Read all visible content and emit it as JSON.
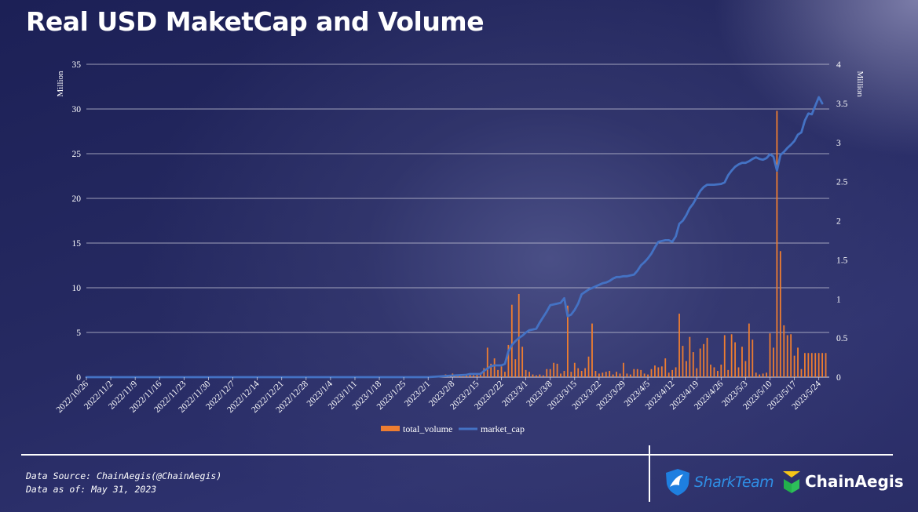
{
  "title": "Real USD MaketCap and Volume",
  "footer": {
    "source_line": "Data Source: ChainAegis(@ChainAegis)",
    "date_line": "Data as of: May 31, 2023",
    "logos": [
      {
        "name": "SharkTeam",
        "color": "#2f8fe6"
      },
      {
        "name": "ChainAegis",
        "color": "#ffffff"
      }
    ]
  },
  "chart_data": {
    "type": "bar+line",
    "x_start": "2022/10/26",
    "x_end": "2023/5/27",
    "x_tick_labels": [
      "2022/10/26",
      "2022/11/2",
      "2022/11/9",
      "2022/11/16",
      "2022/11/23",
      "2022/11/30",
      "2022/12/7",
      "2022/12/14",
      "2022/12/21",
      "2022/12/28",
      "2023/1/4",
      "2023/1/11",
      "2023/1/18",
      "2023/1/25",
      "2023/2/1",
      "2023/2/8",
      "2023/2/15",
      "2023/2/22",
      "2023/3/1",
      "2023/3/8",
      "2023/3/15",
      "2023/3/22",
      "2023/3/29",
      "2023/4/5",
      "2023/4/12",
      "2023/4/19",
      "2023/4/26",
      "2023/5/3",
      "2023/5/10",
      "2023/5/17",
      "2023/5/24"
    ],
    "y_left": {
      "unit": "Million",
      "min": 0,
      "max": 35,
      "ticks": [
        0,
        5,
        10,
        15,
        20,
        25,
        30,
        35
      ]
    },
    "y_right": {
      "unit": "Million",
      "min": 0,
      "max": 4,
      "ticks": [
        "0",
        "0.5",
        "1",
        "1.5",
        "2",
        "2.5",
        "3",
        "3.5",
        "4"
      ]
    },
    "grid": true,
    "legend_position": "bottom",
    "series": [
      {
        "name": "total_volume",
        "kind": "bar",
        "axis": "left",
        "color": "#ed7d31",
        "points": [
          [
            "2023/2/6",
            0.3
          ],
          [
            "2023/2/7",
            0.2
          ],
          [
            "2023/2/8",
            0.4
          ],
          [
            "2023/2/9",
            0.2
          ],
          [
            "2023/2/10",
            0.3
          ],
          [
            "2023/2/11",
            0.1
          ],
          [
            "2023/2/12",
            0.2
          ],
          [
            "2023/2/13",
            0.3
          ],
          [
            "2023/2/14",
            0.2
          ],
          [
            "2023/2/15",
            0.4
          ],
          [
            "2023/2/16",
            0.5
          ],
          [
            "2023/2/17",
            1.0
          ],
          [
            "2023/2/18",
            3.3
          ],
          [
            "2023/2/19",
            1.5
          ],
          [
            "2023/2/20",
            2.1
          ],
          [
            "2023/2/21",
            0.8
          ],
          [
            "2023/2/22",
            1.2
          ],
          [
            "2023/2/23",
            0.6
          ],
          [
            "2023/2/24",
            3.6
          ],
          [
            "2023/2/25",
            8.1
          ],
          [
            "2023/2/26",
            2.0
          ],
          [
            "2023/2/27",
            9.3
          ],
          [
            "2023/2/28",
            3.4
          ],
          [
            "2023/3/1",
            0.8
          ],
          [
            "2023/3/2",
            0.6
          ],
          [
            "2023/3/3",
            0.3
          ],
          [
            "2023/3/4",
            0.2
          ],
          [
            "2023/3/5",
            0.3
          ],
          [
            "2023/3/6",
            0.2
          ],
          [
            "2023/3/7",
            0.9
          ],
          [
            "2023/3/8",
            0.9
          ],
          [
            "2023/3/9",
            1.6
          ],
          [
            "2023/3/10",
            1.5
          ],
          [
            "2023/3/11",
            0.4
          ],
          [
            "2023/3/12",
            0.7
          ],
          [
            "2023/3/13",
            8.0
          ],
          [
            "2023/3/14",
            0.6
          ],
          [
            "2023/3/15",
            1.6
          ],
          [
            "2023/3/16",
            1.0
          ],
          [
            "2023/3/17",
            0.7
          ],
          [
            "2023/3/18",
            1.0
          ],
          [
            "2023/3/19",
            2.3
          ],
          [
            "2023/3/20",
            6.0
          ],
          [
            "2023/3/21",
            0.7
          ],
          [
            "2023/3/22",
            0.4
          ],
          [
            "2023/3/23",
            0.5
          ],
          [
            "2023/3/24",
            0.6
          ],
          [
            "2023/3/25",
            0.7
          ],
          [
            "2023/3/26",
            0.3
          ],
          [
            "2023/3/27",
            0.6
          ],
          [
            "2023/3/28",
            0.4
          ],
          [
            "2023/3/29",
            1.6
          ],
          [
            "2023/3/30",
            0.4
          ],
          [
            "2023/3/31",
            0.3
          ],
          [
            "2023/4/1",
            0.9
          ],
          [
            "2023/4/2",
            0.9
          ],
          [
            "2023/4/3",
            0.8
          ],
          [
            "2023/4/4",
            0.4
          ],
          [
            "2023/4/5",
            0.3
          ],
          [
            "2023/4/6",
            0.9
          ],
          [
            "2023/4/7",
            1.3
          ],
          [
            "2023/4/8",
            1.1
          ],
          [
            "2023/4/9",
            1.2
          ],
          [
            "2023/4/10",
            2.1
          ],
          [
            "2023/4/11",
            0.5
          ],
          [
            "2023/4/12",
            0.8
          ],
          [
            "2023/4/13",
            1.1
          ],
          [
            "2023/4/14",
            7.1
          ],
          [
            "2023/4/15",
            3.5
          ],
          [
            "2023/4/16",
            1.8
          ],
          [
            "2023/4/17",
            4.5
          ],
          [
            "2023/4/18",
            2.8
          ],
          [
            "2023/4/19",
            1.0
          ],
          [
            "2023/4/20",
            3.2
          ],
          [
            "2023/4/21",
            3.7
          ],
          [
            "2023/4/22",
            4.4
          ],
          [
            "2023/4/23",
            1.4
          ],
          [
            "2023/4/24",
            1.1
          ],
          [
            "2023/4/25",
            0.7
          ],
          [
            "2023/4/26",
            1.4
          ],
          [
            "2023/4/27",
            4.7
          ],
          [
            "2023/4/28",
            0.8
          ],
          [
            "2023/4/29",
            4.8
          ],
          [
            "2023/4/30",
            3.9
          ],
          [
            "2023/5/1",
            1.1
          ],
          [
            "2023/5/2",
            3.4
          ],
          [
            "2023/5/3",
            1.8
          ],
          [
            "2023/5/4",
            6.0
          ],
          [
            "2023/5/5",
            4.2
          ],
          [
            "2023/5/6",
            0.5
          ],
          [
            "2023/5/7",
            0.3
          ],
          [
            "2023/5/8",
            0.4
          ],
          [
            "2023/5/9",
            0.5
          ],
          [
            "2023/5/10",
            4.9
          ],
          [
            "2023/5/11",
            3.3
          ],
          [
            "2023/5/12",
            29.8
          ],
          [
            "2023/5/13",
            14.1
          ],
          [
            "2023/5/14",
            5.8
          ],
          [
            "2023/5/15",
            4.7
          ],
          [
            "2023/5/16",
            4.8
          ],
          [
            "2023/5/17",
            2.4
          ],
          [
            "2023/5/18",
            3.3
          ],
          [
            "2023/5/19",
            0.9
          ],
          [
            "2023/5/20",
            2.7
          ],
          [
            "2023/5/21",
            2.7
          ],
          [
            "2023/5/22",
            2.7
          ],
          [
            "2023/5/23",
            2.7
          ],
          [
            "2023/5/24",
            2.7
          ],
          [
            "2023/5/25",
            2.7
          ],
          [
            "2023/5/26",
            2.7
          ]
        ]
      },
      {
        "name": "market_cap",
        "kind": "line",
        "axis": "right",
        "color": "#4472c4",
        "points": [
          [
            "2022/10/26",
            0
          ],
          [
            "2023/2/1",
            0.0
          ],
          [
            "2023/2/8",
            0.02
          ],
          [
            "2023/2/12",
            0.03
          ],
          [
            "2023/2/13",
            0.04
          ],
          [
            "2023/2/16",
            0.04
          ],
          [
            "2023/2/17",
            0.08
          ],
          [
            "2023/2/18",
            0.11
          ],
          [
            "2023/2/19",
            0.14
          ],
          [
            "2023/2/20",
            0.15
          ],
          [
            "2023/2/22",
            0.15
          ],
          [
            "2023/2/23",
            0.17
          ],
          [
            "2023/2/24",
            0.33
          ],
          [
            "2023/2/25",
            0.41
          ],
          [
            "2023/2/26",
            0.46
          ],
          [
            "2023/2/27",
            0.5
          ],
          [
            "2023/2/28",
            0.53
          ],
          [
            "2023/3/1",
            0.57
          ],
          [
            "2023/3/2",
            0.6
          ],
          [
            "2023/3/3",
            0.61
          ],
          [
            "2023/3/4",
            0.62
          ],
          [
            "2023/3/5",
            0.7
          ],
          [
            "2023/3/6",
            0.77
          ],
          [
            "2023/3/7",
            0.84
          ],
          [
            "2023/3/8",
            0.92
          ],
          [
            "2023/3/9",
            0.93
          ],
          [
            "2023/3/10",
            0.94
          ],
          [
            "2023/3/11",
            0.95
          ],
          [
            "2023/3/12",
            1.01
          ],
          [
            "2023/3/13",
            0.78
          ],
          [
            "2023/3/14",
            0.8
          ],
          [
            "2023/3/15",
            0.86
          ],
          [
            "2023/3/16",
            0.94
          ],
          [
            "2023/3/17",
            1.06
          ],
          [
            "2023/3/18",
            1.09
          ],
          [
            "2023/3/19",
            1.12
          ],
          [
            "2023/3/20",
            1.14
          ],
          [
            "2023/3/21",
            1.16
          ],
          [
            "2023/3/22",
            1.18
          ],
          [
            "2023/3/23",
            1.2
          ],
          [
            "2023/3/24",
            1.21
          ],
          [
            "2023/3/25",
            1.23
          ],
          [
            "2023/3/26",
            1.26
          ],
          [
            "2023/3/27",
            1.28
          ],
          [
            "2023/3/28",
            1.28
          ],
          [
            "2023/3/29",
            1.29
          ],
          [
            "2023/3/30",
            1.29
          ],
          [
            "2023/3/31",
            1.3
          ],
          [
            "2023/4/1",
            1.31
          ],
          [
            "2023/4/2",
            1.36
          ],
          [
            "2023/4/3",
            1.43
          ],
          [
            "2023/4/4",
            1.47
          ],
          [
            "2023/4/5",
            1.52
          ],
          [
            "2023/4/6",
            1.58
          ],
          [
            "2023/4/7",
            1.66
          ],
          [
            "2023/4/8",
            1.73
          ],
          [
            "2023/4/9",
            1.74
          ],
          [
            "2023/4/10",
            1.75
          ],
          [
            "2023/4/11",
            1.75
          ],
          [
            "2023/4/12",
            1.73
          ],
          [
            "2023/4/13",
            1.8
          ],
          [
            "2023/4/14",
            1.96
          ],
          [
            "2023/4/15",
            2.0
          ],
          [
            "2023/4/16",
            2.07
          ],
          [
            "2023/4/17",
            2.16
          ],
          [
            "2023/4/18",
            2.22
          ],
          [
            "2023/4/19",
            2.3
          ],
          [
            "2023/4/20",
            2.38
          ],
          [
            "2023/4/21",
            2.43
          ],
          [
            "2023/4/22",
            2.46
          ],
          [
            "2023/4/24",
            2.46
          ],
          [
            "2023/4/26",
            2.47
          ],
          [
            "2023/4/27",
            2.49
          ],
          [
            "2023/4/28",
            2.58
          ],
          [
            "2023/4/29",
            2.64
          ],
          [
            "2023/4/30",
            2.69
          ],
          [
            "2023/5/1",
            2.72
          ],
          [
            "2023/5/2",
            2.74
          ],
          [
            "2023/5/3",
            2.74
          ],
          [
            "2023/5/4",
            2.76
          ],
          [
            "2023/5/5",
            2.79
          ],
          [
            "2023/5/6",
            2.81
          ],
          [
            "2023/5/7",
            2.79
          ],
          [
            "2023/5/8",
            2.78
          ],
          [
            "2023/5/9",
            2.8
          ],
          [
            "2023/5/10",
            2.85
          ],
          [
            "2023/5/11",
            2.82
          ],
          [
            "2023/5/12",
            2.64
          ],
          [
            "2023/5/13",
            2.84
          ],
          [
            "2023/5/14",
            2.88
          ],
          [
            "2023/5/15",
            2.93
          ],
          [
            "2023/5/16",
            2.97
          ],
          [
            "2023/5/17",
            3.02
          ],
          [
            "2023/5/18",
            3.1
          ],
          [
            "2023/5/19",
            3.13
          ],
          [
            "2023/5/20",
            3.28
          ],
          [
            "2023/5/21",
            3.37
          ],
          [
            "2023/5/22",
            3.36
          ],
          [
            "2023/5/23",
            3.47
          ],
          [
            "2023/5/24",
            3.58
          ],
          [
            "2023/5/25",
            3.5
          ]
        ]
      }
    ]
  }
}
